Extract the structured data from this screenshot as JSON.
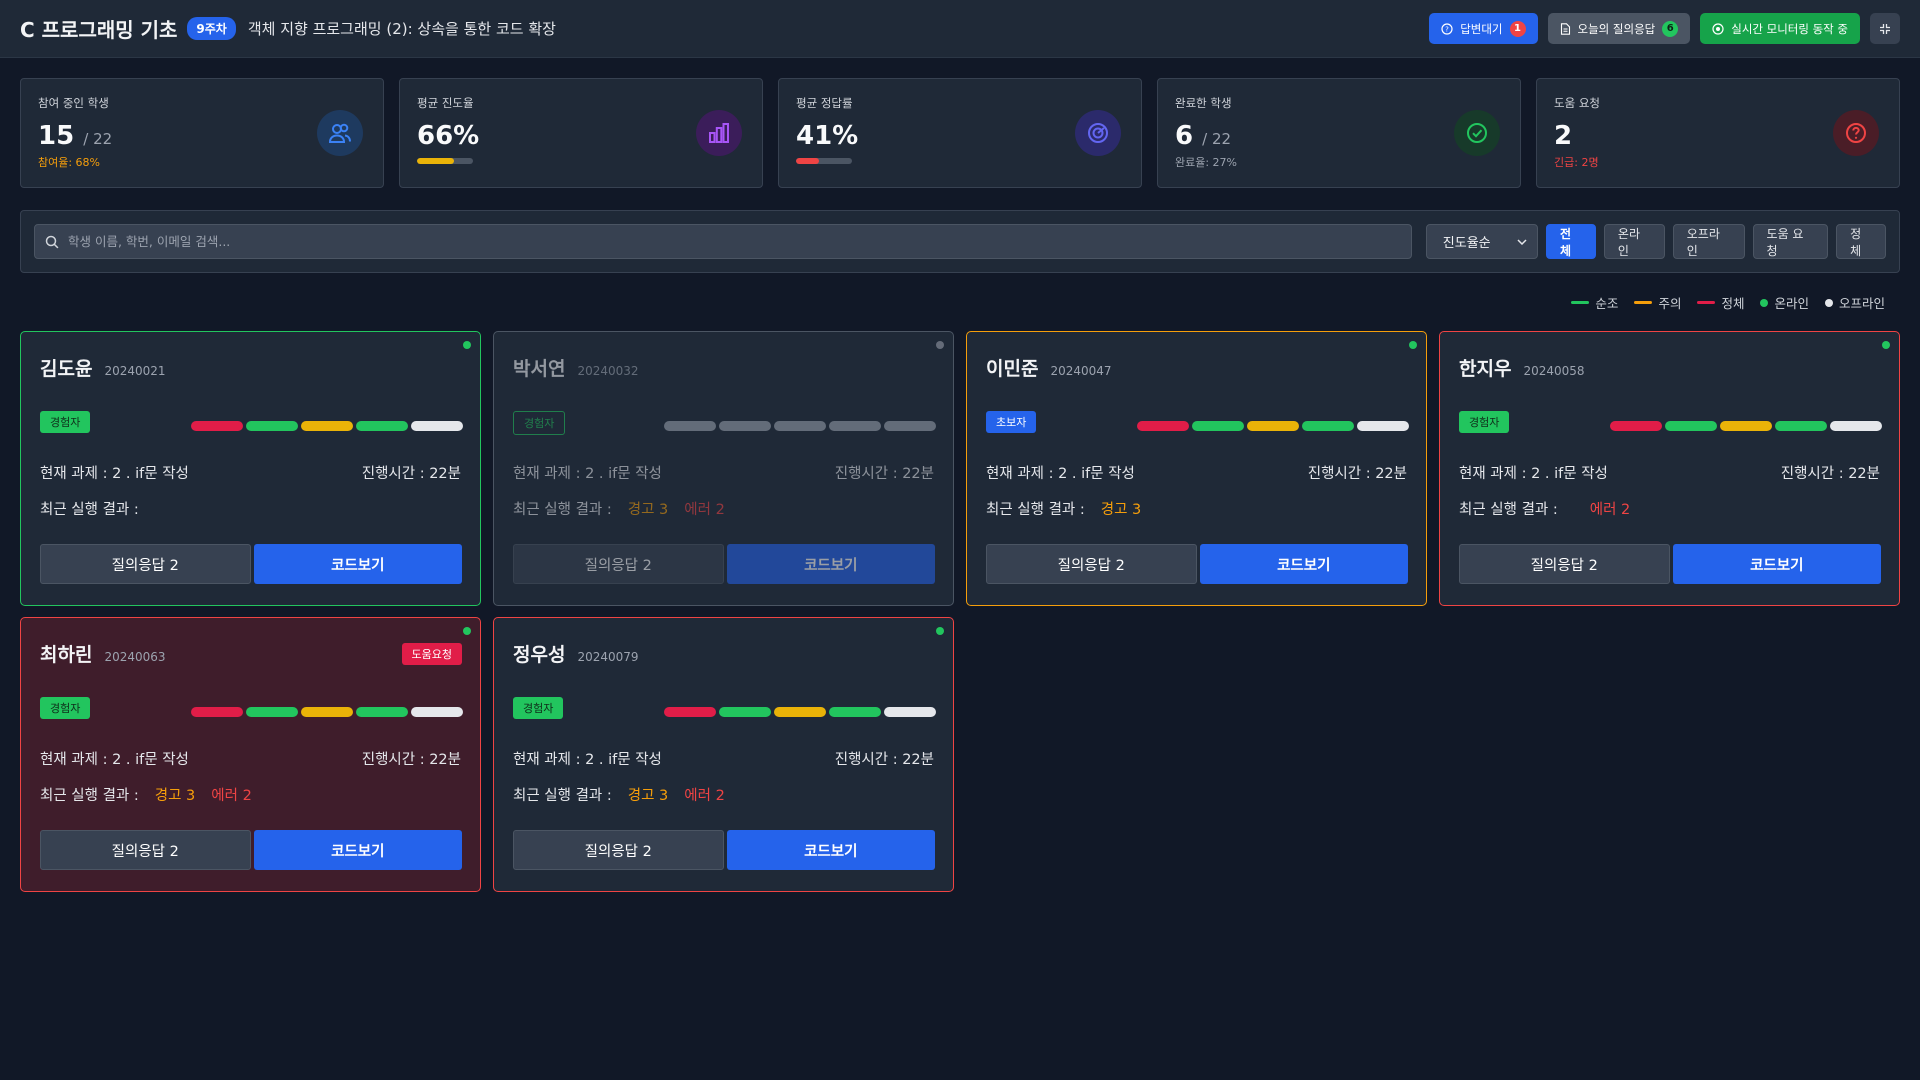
{
  "header": {
    "title": "C 프로그래밍 기초",
    "week": "9주차",
    "lesson": "객체 지향 프로그래밍 (2): 상속을 통한 코드 확장",
    "waiting_label": "답변대기",
    "waiting_count": "1",
    "qa_label": "오늘의 질의응답",
    "qa_count": "6",
    "monitor_label": "실시간 모니터링 동작 중"
  },
  "stats": [
    {
      "label": "참여 중인 학생",
      "value": "15",
      "sub": "/ 22",
      "note": "참여율: 68%",
      "icon": "users-icon"
    },
    {
      "label": "평균 진도율",
      "value": "66%",
      "progress": 0.66,
      "icon": "bar-chart-icon"
    },
    {
      "label": "평균 정답률",
      "value": "41%",
      "progress": 0.41,
      "icon": "gauge-icon"
    },
    {
      "label": "완료한 학생",
      "value": "6",
      "sub": "/ 22",
      "note": "완료율: 27%",
      "icon": "check-circle-icon"
    },
    {
      "label": "도움 요청",
      "value": "2",
      "note": "긴급: 2명",
      "icon": "help-circle-icon"
    }
  ],
  "filters": {
    "search_placeholder": "학생 이름, 학번, 이메일 검색...",
    "sort_selected": "진도율순",
    "buttons": [
      "전체",
      "온라인",
      "오프라인",
      "도움 요청",
      "정체"
    ]
  },
  "legend": [
    "순조",
    "주의",
    "정체",
    "온라인",
    "오프라인"
  ],
  "colors": {
    "green": "#22c55e",
    "orange": "#f59e0b",
    "red": "#e11d48",
    "gray": "#d1d5db",
    "blue": "#2563eb"
  },
  "card_labels": {
    "task_prefix": "현재 과제 :",
    "time_prefix": "진행시간 :",
    "result_prefix": "최근 실행 결과 :",
    "qa_button": "질의응답 2",
    "code_button": "코드보기",
    "help_badge": "도움요청"
  },
  "students": [
    {
      "name": "김도윤",
      "id": "20240021",
      "level": "경험자",
      "task": "2 . if문 작성",
      "time": "22분",
      "warning": "",
      "error": ""
    },
    {
      "name": "박서연",
      "id": "20240032",
      "level": "경험자",
      "task": "2 . if문 작성",
      "time": "22분",
      "warning": "경고 3",
      "error": "에러 2"
    },
    {
      "name": "이민준",
      "id": "20240047",
      "level": "초보자",
      "task": "2 . if문 작성",
      "time": "22분",
      "warning": "경고 3",
      "error": ""
    },
    {
      "name": "한지우",
      "id": "20240058",
      "level": "경험자",
      "task": "2 . if문 작성",
      "time": "22분",
      "warning": "",
      "error": "에러 2"
    },
    {
      "name": "최하린",
      "id": "20240063",
      "level": "경험자",
      "task": "2 . if문 작성",
      "time": "22분",
      "warning": "경고 3",
      "error": "에러 2"
    },
    {
      "name": "정우성",
      "id": "20240079",
      "level": "경험자",
      "task": "2 . if문 작성",
      "time": "22분",
      "warning": "경고 3",
      "error": "에러 2"
    }
  ]
}
